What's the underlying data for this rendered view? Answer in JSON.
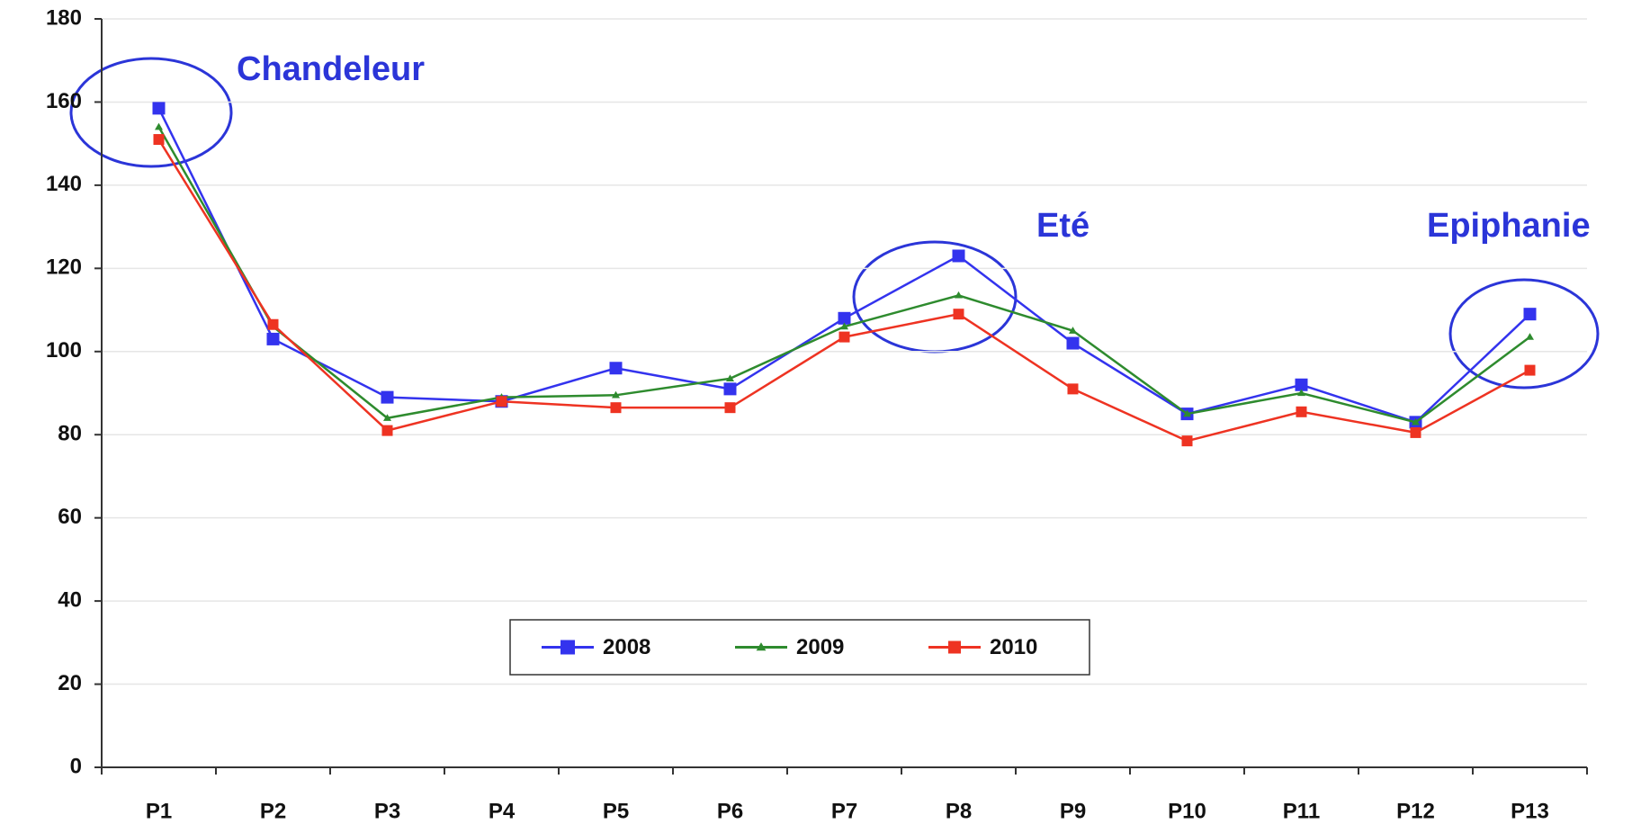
{
  "chart_data": {
    "type": "line",
    "categories": [
      "P1",
      "P2",
      "P3",
      "P4",
      "P5",
      "P6",
      "P7",
      "P8",
      "P9",
      "P10",
      "P11",
      "P12",
      "P13"
    ],
    "series": [
      {
        "name": "2008",
        "color": "#3333ee",
        "marker": "square",
        "values": [
          158.5,
          103,
          89,
          88,
          96,
          91,
          108,
          123,
          102,
          85,
          92,
          83,
          109
        ]
      },
      {
        "name": "2009",
        "color": "#2e8b2e",
        "marker": "triangle",
        "values": [
          154,
          106,
          84,
          89,
          89.5,
          93.5,
          106,
          113.5,
          105,
          85,
          90,
          83,
          103.5
        ]
      },
      {
        "name": "2010",
        "color": "#ee3322",
        "marker": "square",
        "values": [
          151,
          106.5,
          81,
          88,
          86.5,
          86.5,
          103.5,
          109,
          91,
          78.5,
          85.5,
          80.5,
          95.5
        ]
      }
    ],
    "annotations": [
      "Chandeleur",
      "Eté",
      "Epiphanie"
    ],
    "ylim": [
      0,
      180
    ],
    "yticks": [
      0,
      20,
      40,
      60,
      80,
      100,
      120,
      140,
      160,
      180
    ],
    "grid": true,
    "legend": "bottom-center"
  }
}
